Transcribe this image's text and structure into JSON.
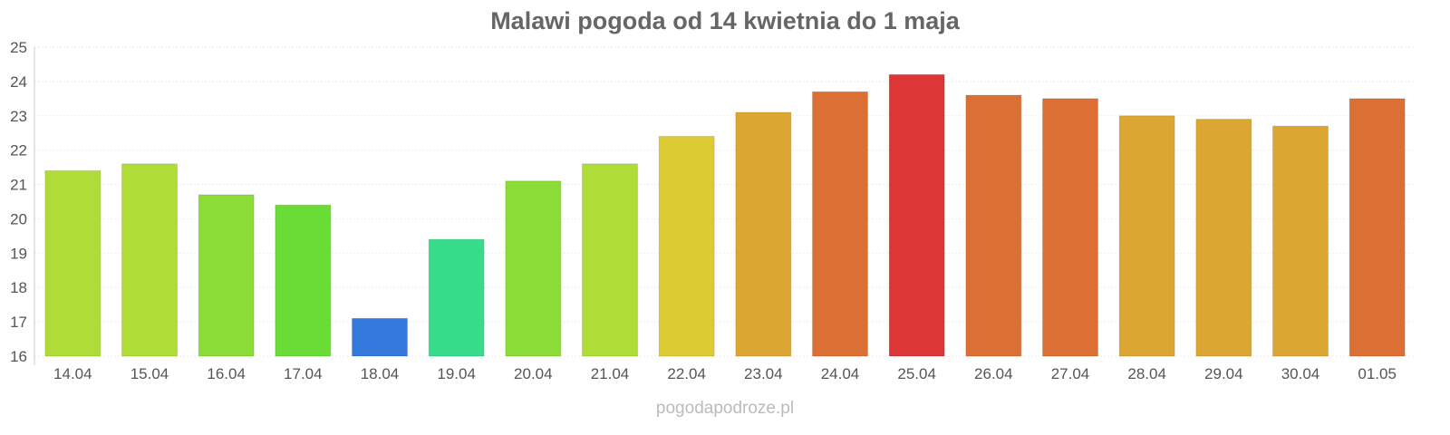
{
  "chart_data": {
    "type": "bar",
    "title": "Malawi pogoda od 14 kwietnia do 1 maja",
    "xlabel": "",
    "ylabel": "",
    "ylim": [
      16,
      25
    ],
    "yticks": [
      16,
      17,
      18,
      19,
      20,
      21,
      22,
      23,
      24,
      25
    ],
    "grid": true,
    "categories": [
      "14.04",
      "15.04",
      "16.04",
      "17.04",
      "18.04",
      "19.04",
      "20.04",
      "21.04",
      "22.04",
      "23.04",
      "24.04",
      "25.04",
      "26.04",
      "27.04",
      "28.04",
      "29.04",
      "30.04",
      "01.05"
    ],
    "values": [
      21.4,
      21.6,
      20.7,
      20.4,
      17.1,
      19.4,
      21.1,
      21.6,
      22.4,
      23.1,
      23.7,
      24.2,
      23.6,
      23.5,
      23.0,
      22.9,
      22.7,
      23.5
    ],
    "colors": [
      "#afdc36",
      "#afdc36",
      "#8bdc36",
      "#69dc36",
      "#3478dc",
      "#36dc8a",
      "#8bdc36",
      "#afdc36",
      "#dccb33",
      "#dca633",
      "#dc6f33",
      "#dc3636",
      "#dc6f33",
      "#dc6f33",
      "#dca633",
      "#dca633",
      "#dca633",
      "#dc6f33"
    ]
  },
  "footer": "pogodapodroze.pl"
}
